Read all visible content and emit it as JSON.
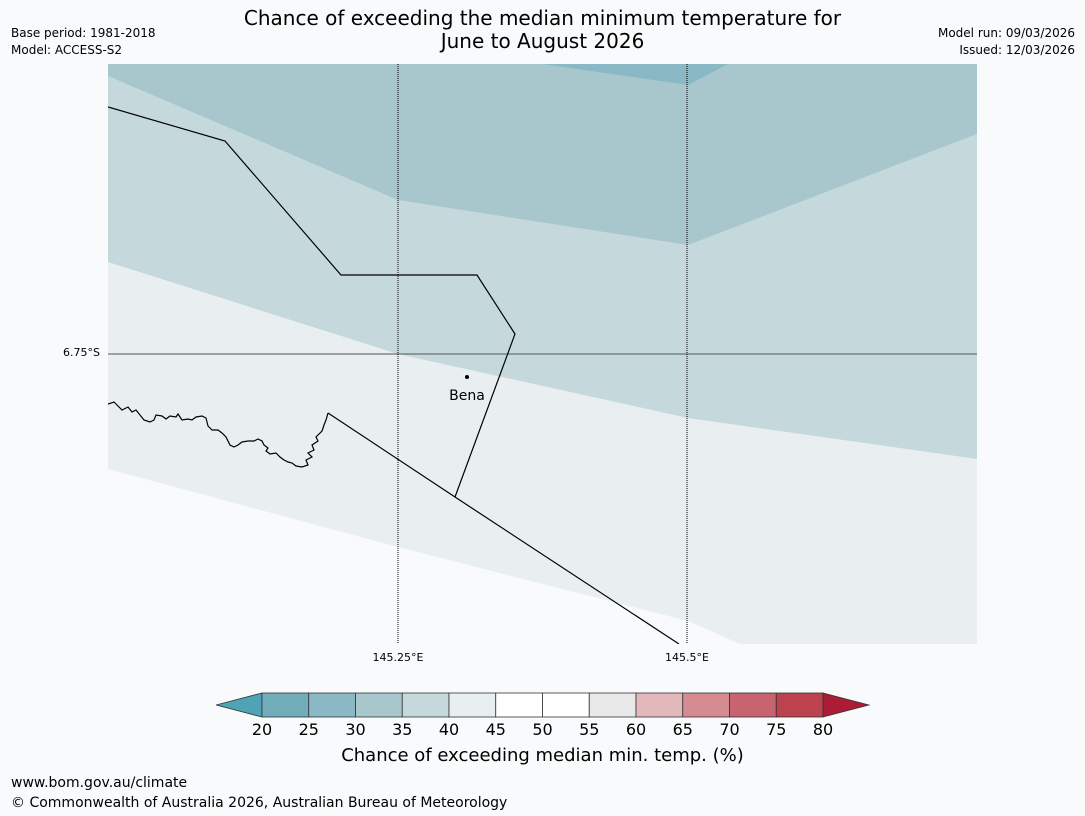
{
  "title": {
    "line1": "Chance of exceeding the median minimum temperature for",
    "line2": "June to August 2026"
  },
  "meta": {
    "base_period": "Base period: 1981-2018",
    "model": "Model: ACCESS-S2",
    "model_run": "Model run: 09/03/2026",
    "issued": "Issued: 12/03/2026"
  },
  "map": {
    "lat_label": "6.75°S",
    "lon_labels": [
      "145.25°E",
      "145.5°E"
    ],
    "place": "Bena",
    "colors": {
      "band_25_30": "#8ab8c4",
      "band_30_35": "#a8c7cc",
      "band_35_40": "#c5d8dc",
      "band_40_45": "#e9eff0",
      "background": "#f8fafb",
      "grid": "#000000"
    }
  },
  "colorbar": {
    "title": "Chance of exceeding median min. temp. (%)",
    "ticks": [
      "20",
      "25",
      "30",
      "35",
      "40",
      "45",
      "50",
      "55",
      "60",
      "65",
      "70",
      "75",
      "80"
    ],
    "colors": [
      "#4fa3b4",
      "#71adba",
      "#8ab8c4",
      "#a8c7cc",
      "#c5d8dc",
      "#e9eff0",
      "#ffffff",
      "#ffffff",
      "#e8e8e8",
      "#e3b8bc",
      "#d58b92",
      "#c8646f",
      "#bd4250",
      "#ac1c35"
    ]
  },
  "footer": {
    "url": "www.bom.gov.au/climate",
    "copyright": "© Commonwealth of Australia 2026, Australian Bureau of Meteorology"
  }
}
